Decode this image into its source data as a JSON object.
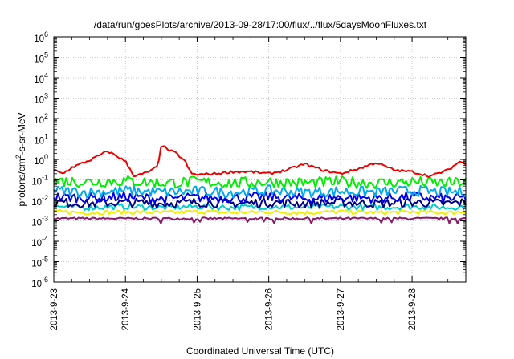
{
  "chart_data": {
    "type": "line",
    "title": "/data/run/goesPlots/archive/2013-09-28/17:00/flux/../flux/5daysMoonFluxes.txt",
    "xlabel": "Coordinated Universal Time (UTC)",
    "ylabel": {
      "prefix": "protons/cm",
      "sup": "2",
      "suffix": "-s-sr-MeV"
    },
    "x_axis": {
      "type": "date",
      "range": [
        "2013-09-23",
        "2013-09-28 18:00"
      ],
      "tick_labels": [
        "2013-9-23",
        "2013-9-24",
        "2013-9-25",
        "2013-9-26",
        "2013-9-27",
        "2013-9-28"
      ]
    },
    "y_axis": {
      "scale": "log",
      "range": [
        1e-06,
        1000000.0
      ],
      "tick_labels": [
        {
          "base": "10",
          "exp": "-6"
        },
        {
          "base": "10",
          "exp": "-5"
        },
        {
          "base": "10",
          "exp": "-4"
        },
        {
          "base": "10",
          "exp": "-3"
        },
        {
          "base": "10",
          "exp": "-2"
        },
        {
          "base": "10",
          "exp": "-1"
        },
        {
          "base": "10",
          "exp": "0"
        },
        {
          "base": "10",
          "exp": "1"
        },
        {
          "base": "10",
          "exp": "2"
        },
        {
          "base": "10",
          "exp": "3"
        },
        {
          "base": "10",
          "exp": "4"
        },
        {
          "base": "10",
          "exp": "5"
        },
        {
          "base": "10",
          "exp": "6"
        }
      ]
    },
    "grid": true,
    "legend": "none",
    "series": [
      {
        "color": "#ee0000",
        "x": [
          "2013-09-23 00:00",
          "2013-09-23 03:00",
          "2013-09-23 06:00",
          "2013-09-23 09:00",
          "2013-09-23 12:00",
          "2013-09-23 15:00",
          "2013-09-23 18:00",
          "2013-09-23 21:00",
          "2013-09-24 00:00",
          "2013-09-24 03:00",
          "2013-09-24 06:00",
          "2013-09-24 09:00",
          "2013-09-24 11:00",
          "2013-09-24 12:00",
          "2013-09-24 14:00",
          "2013-09-24 17:00",
          "2013-09-24 20:00",
          "2013-09-24 22:00",
          "2013-09-25 00:00",
          "2013-09-25 06:00",
          "2013-09-25 12:00",
          "2013-09-25 18:00",
          "2013-09-26 00:00",
          "2013-09-26 06:00",
          "2013-09-26 12:00",
          "2013-09-26 18:00",
          "2013-09-27 00:00",
          "2013-09-27 06:00",
          "2013-09-27 12:00",
          "2013-09-27 18:00",
          "2013-09-28 00:00",
          "2013-09-28 06:00",
          "2013-09-28 12:00",
          "2013-09-28 16:00",
          "2013-09-28 18:00"
        ],
        "y": [
          0.3,
          0.2,
          0.4,
          0.6,
          0.9,
          1.5,
          2.5,
          1.5,
          0.8,
          0.15,
          0.2,
          0.3,
          0.5,
          6,
          3,
          2,
          0.8,
          0.2,
          0.18,
          0.2,
          0.25,
          0.25,
          0.2,
          0.3,
          0.6,
          0.3,
          0.2,
          0.35,
          0.7,
          0.3,
          0.25,
          0.15,
          0.3,
          0.8,
          0.6
        ]
      },
      {
        "color": "#00ee00",
        "x": [
          "2013-09-23 00:00",
          "2013-09-23 12:00",
          "2013-09-24 00:00",
          "2013-09-24 12:00",
          "2013-09-25 00:00",
          "2013-09-25 12:00",
          "2013-09-26 00:00",
          "2013-09-26 12:00",
          "2013-09-27 00:00",
          "2013-09-27 12:00",
          "2013-09-28 00:00",
          "2013-09-28 12:00",
          "2013-09-28 18:00"
        ],
        "y": [
          0.09,
          0.08,
          0.09,
          0.07,
          0.08,
          0.07,
          0.08,
          0.07,
          0.08,
          0.07,
          0.08,
          0.07,
          0.08
        ]
      },
      {
        "color": "#00aaee",
        "x": [
          "2013-09-23 00:00",
          "2013-09-23 12:00",
          "2013-09-24 00:00",
          "2013-09-24 12:00",
          "2013-09-25 00:00",
          "2013-09-25 12:00",
          "2013-09-26 00:00",
          "2013-09-26 12:00",
          "2013-09-27 00:00",
          "2013-09-27 12:00",
          "2013-09-28 00:00",
          "2013-09-28 12:00",
          "2013-09-28 18:00"
        ],
        "y": [
          0.03,
          0.025,
          0.03,
          0.025,
          0.028,
          0.025,
          0.03,
          0.025,
          0.028,
          0.025,
          0.03,
          0.025,
          0.028
        ]
      },
      {
        "color": "#0000ee",
        "x": [
          "2013-09-23 00:00",
          "2013-09-23 12:00",
          "2013-09-24 00:00",
          "2013-09-24 12:00",
          "2013-09-25 00:00",
          "2013-09-25 12:00",
          "2013-09-26 00:00",
          "2013-09-26 12:00",
          "2013-09-27 00:00",
          "2013-09-27 12:00",
          "2013-09-28 00:00",
          "2013-09-28 12:00",
          "2013-09-28 18:00"
        ],
        "y": [
          0.015,
          0.013,
          0.015,
          0.012,
          0.014,
          0.013,
          0.015,
          0.012,
          0.014,
          0.013,
          0.015,
          0.012,
          0.014
        ]
      },
      {
        "color": "#000088",
        "x": [
          "2013-09-23 00:00",
          "2013-09-23 12:00",
          "2013-09-24 00:00",
          "2013-09-24 12:00",
          "2013-09-25 00:00",
          "2013-09-25 12:00",
          "2013-09-26 00:00",
          "2013-09-26 12:00",
          "2013-09-27 00:00",
          "2013-09-27 12:00",
          "2013-09-28 00:00",
          "2013-09-28 12:00",
          "2013-09-28 18:00"
        ],
        "y": [
          0.008,
          0.007,
          0.008,
          0.007,
          0.008,
          0.007,
          0.008,
          0.007,
          0.008,
          0.007,
          0.008,
          0.007,
          0.008
        ]
      },
      {
        "color": "#00cccc",
        "x": [
          "2013-09-23 00:00",
          "2013-09-23 12:00",
          "2013-09-24 00:00",
          "2013-09-24 12:00",
          "2013-09-25 00:00",
          "2013-09-25 12:00",
          "2013-09-26 00:00",
          "2013-09-26 12:00",
          "2013-09-27 00:00",
          "2013-09-27 12:00",
          "2013-09-28 00:00",
          "2013-09-28 12:00",
          "2013-09-28 18:00"
        ],
        "y": [
          0.005,
          0.0045,
          0.005,
          0.0045,
          0.005,
          0.0045,
          0.005,
          0.0045,
          0.005,
          0.0045,
          0.005,
          0.0045,
          0.005
        ]
      },
      {
        "color": "#eeee00",
        "x": [
          "2013-09-23 00:00",
          "2013-09-23 12:00",
          "2013-09-24 00:00",
          "2013-09-24 12:00",
          "2013-09-25 00:00",
          "2013-09-25 12:00",
          "2013-09-26 00:00",
          "2013-09-26 12:00",
          "2013-09-27 00:00",
          "2013-09-27 12:00",
          "2013-09-28 00:00",
          "2013-09-28 12:00",
          "2013-09-28 18:00"
        ],
        "y": [
          0.0028,
          0.0025,
          0.0027,
          0.0025,
          0.0028,
          0.0025,
          0.0027,
          0.0025,
          0.0028,
          0.0025,
          0.0027,
          0.0025,
          0.0028
        ]
      },
      {
        "color": "#8b1a6b",
        "x": [
          "2013-09-23 00:00",
          "2013-09-23 12:00",
          "2013-09-24 00:00",
          "2013-09-24 12:00",
          "2013-09-25 00:00",
          "2013-09-25 12:00",
          "2013-09-26 00:00",
          "2013-09-26 12:00",
          "2013-09-27 00:00",
          "2013-09-27 12:00",
          "2013-09-28 00:00",
          "2013-09-28 12:00",
          "2013-09-28 18:00"
        ],
        "y": [
          0.0013,
          0.0013,
          0.0013,
          0.0013,
          0.0013,
          0.0013,
          0.0013,
          0.0013,
          0.0013,
          0.0013,
          0.0013,
          0.0013,
          0.0013
        ]
      }
    ]
  }
}
